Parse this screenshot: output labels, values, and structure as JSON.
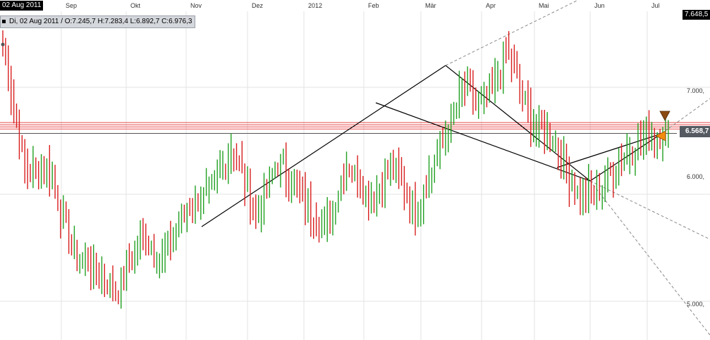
{
  "header": {
    "date_badge": "02 Aug 2011",
    "ohlc_text": "Di, 02 Aug 2011 / O:7.245,7  H:7.283,4  L:6.892,7  C:6.976,3"
  },
  "price_axis": {
    "top_badge": "7.648,5",
    "last_price": "6.568,7",
    "labels": [
      "7.000,",
      "6.000,",
      "5.000,"
    ]
  },
  "colors": {
    "up": "#22a022",
    "down": "#d81e1e",
    "grid": "#e3e3e3",
    "trend": "#000000",
    "resistance": "#e84a4a",
    "last_price_line": "#555555",
    "projection": "#8a8a8a",
    "arrow_down": "#8a4a12",
    "arrow_left": "#f28c10"
  },
  "chart_data": {
    "type": "ohlc",
    "x_labels": [
      "Sep",
      "Okt",
      "Nov",
      "Dez",
      "2012",
      "Feb",
      "Mär",
      "Apr",
      "Mai",
      "Jun",
      "Jul"
    ],
    "y_ticks": [
      5000,
      6000,
      7000
    ],
    "ylim": [
      4700,
      7800
    ],
    "top_value": 7648.5,
    "last_value": 6568.7,
    "grid": true,
    "resistance_levels": [
      6610,
      6630,
      6650,
      6670
    ],
    "anchors": [
      7400,
      6200,
      6250,
      5500,
      5300,
      5100,
      5600,
      5400,
      5900,
      6000,
      6450,
      5800,
      6300,
      6000,
      5650,
      6300,
      5950,
      6250,
      5850,
      6400,
      6950,
      6850,
      7350,
      6700,
      6500,
      6000,
      6050,
      6350,
      6550,
      6560
    ]
  }
}
